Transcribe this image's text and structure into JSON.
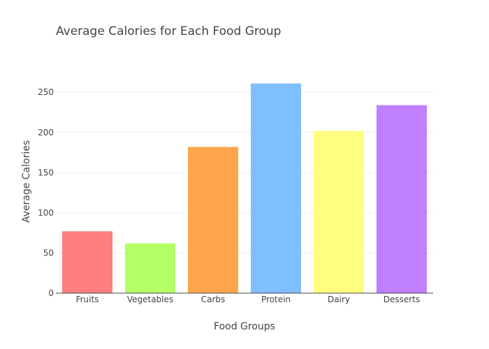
{
  "chart_data": {
    "type": "bar",
    "title": "Average Calories for Each Food Group",
    "xlabel": "Food Groups",
    "ylabel": "Average Calories",
    "categories": [
      "Fruits",
      "Vegetables",
      "Carbs",
      "Protein",
      "Dairy",
      "Desserts"
    ],
    "values": [
      77,
      62,
      182,
      261,
      202,
      234
    ],
    "colors": [
      "#ff7f7f",
      "#b3ff66",
      "#ffa64d",
      "#7fbfff",
      "#ffff7f",
      "#bf7fff"
    ],
    "ylim": [
      0,
      278
    ],
    "yticks": [
      0,
      50,
      100,
      150,
      200,
      250
    ],
    "grid": true,
    "legend": "none"
  }
}
